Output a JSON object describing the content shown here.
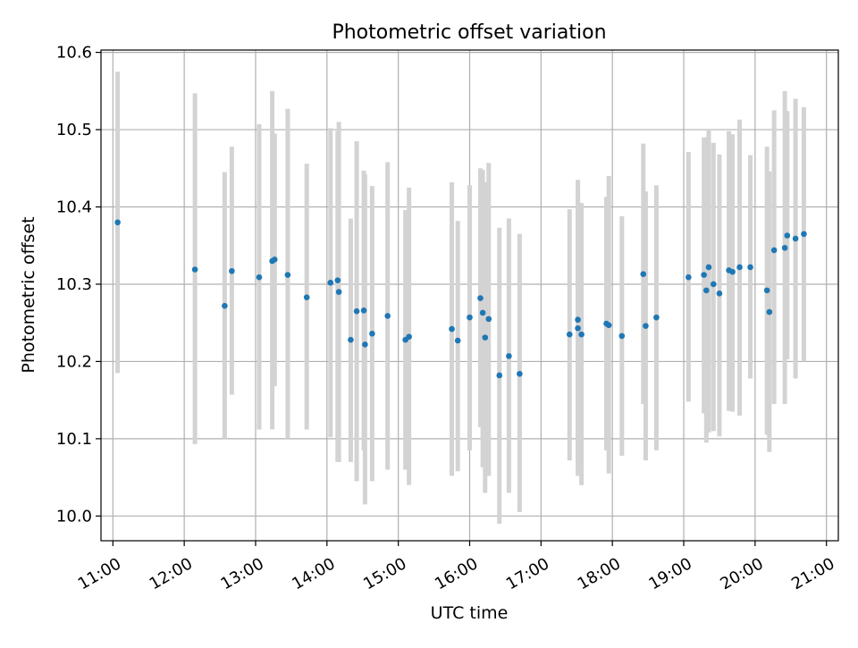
{
  "chart_data": {
    "type": "scatter",
    "title": "Photometric offset variation",
    "xlabel": "UTC time",
    "ylabel": "Photometric offset",
    "x_axis": "time",
    "xlim": [
      "10:50",
      "21:10"
    ],
    "ylim": [
      9.968,
      10.603
    ],
    "xticks": [
      "11:00",
      "12:00",
      "13:00",
      "14:00",
      "15:00",
      "16:00",
      "17:00",
      "18:00",
      "19:00",
      "20:00",
      "21:00"
    ],
    "yticks": [
      "10.0",
      "10.1",
      "10.2",
      "10.3",
      "10.4",
      "10.5",
      "10.6"
    ],
    "grid": true,
    "colors": {
      "point": "#1f77b4",
      "errorbar": "#d3d3d3",
      "grid": "#b0b0b0"
    },
    "series": [
      {
        "x": [
          "11:04",
          "12:09",
          "12:34",
          "12:40",
          "13:03",
          "13:14",
          "13:16",
          "13:27",
          "13:43",
          "14:03",
          "14:09",
          "14:10",
          "14:20",
          "14:25",
          "14:31",
          "14:32",
          "14:38",
          "14:51",
          "15:06",
          "15:09",
          "15:45",
          "15:50",
          "16:00",
          "16:09",
          "16:11",
          "16:13",
          "16:16",
          "16:25",
          "16:33",
          "16:42",
          "17:24",
          "17:31",
          "17:31",
          "17:34",
          "17:55",
          "17:57",
          "18:08",
          "18:26",
          "18:28",
          "18:37",
          "19:04",
          "19:17",
          "19:19",
          "19:21",
          "19:25",
          "19:30",
          "19:38",
          "19:41",
          "19:47",
          "19:56",
          "20:10",
          "20:12",
          "20:16",
          "20:25",
          "20:27",
          "20:34",
          "20:41"
        ],
        "y": [
          10.38,
          10.319,
          10.272,
          10.317,
          10.309,
          10.33,
          10.332,
          10.312,
          10.283,
          10.302,
          10.305,
          10.29,
          10.228,
          10.265,
          10.266,
          10.222,
          10.236,
          10.259,
          10.228,
          10.232,
          10.242,
          10.227,
          10.257,
          10.282,
          10.263,
          10.231,
          10.255,
          10.182,
          10.207,
          10.184,
          10.235,
          10.243,
          10.254,
          10.235,
          10.249,
          10.247,
          10.233,
          10.313,
          10.246,
          10.257,
          10.309,
          10.312,
          10.292,
          10.322,
          10.3,
          10.288,
          10.318,
          10.316,
          10.322,
          10.322,
          10.292,
          10.264,
          10.344,
          10.347,
          10.363,
          10.359,
          10.365
        ],
        "yerr_low": [
          10.185,
          10.093,
          10.1,
          10.157,
          10.112,
          10.112,
          10.168,
          10.1,
          10.112,
          10.102,
          10.07,
          10.07,
          10.07,
          10.045,
          10.085,
          10.015,
          10.045,
          10.06,
          10.06,
          10.04,
          10.052,
          10.058,
          10.085,
          10.115,
          10.063,
          10.03,
          10.052,
          9.99,
          10.03,
          10.005,
          10.072,
          10.052,
          10.07,
          10.04,
          10.085,
          10.055,
          10.078,
          10.145,
          10.072,
          10.085,
          10.148,
          10.133,
          10.095,
          10.108,
          10.11,
          10.103,
          10.136,
          10.135,
          10.13,
          10.178,
          10.105,
          10.083,
          10.145,
          10.145,
          10.203,
          10.178,
          10.2
        ],
        "yerr_high": [
          10.575,
          10.547,
          10.445,
          10.478,
          10.507,
          10.55,
          10.495,
          10.527,
          10.456,
          10.502,
          10.498,
          10.51,
          10.385,
          10.485,
          10.447,
          10.442,
          10.427,
          10.458,
          10.396,
          10.425,
          10.432,
          10.382,
          10.428,
          10.45,
          10.448,
          10.432,
          10.457,
          10.373,
          10.385,
          10.365,
          10.397,
          10.435,
          10.418,
          10.405,
          10.413,
          10.44,
          10.388,
          10.482,
          10.42,
          10.428,
          10.471,
          10.49,
          10.49,
          10.5,
          10.483,
          10.468,
          10.498,
          10.494,
          10.513,
          10.467,
          10.478,
          10.446,
          10.525,
          10.55,
          10.524,
          10.54,
          10.529
        ]
      }
    ]
  }
}
